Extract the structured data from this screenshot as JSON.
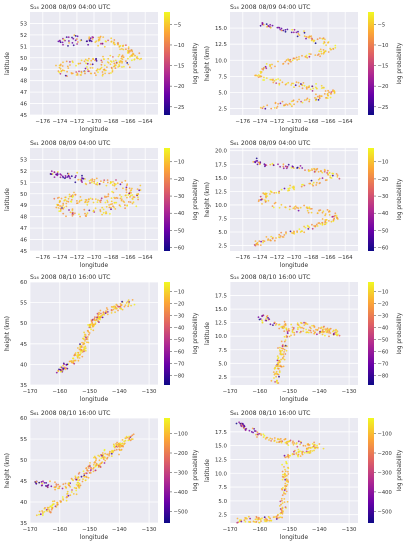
{
  "figure": {
    "background": "#ffffff",
    "axes_face": "#eaeaf2",
    "grid_color": "#ffffff"
  },
  "colormap": [
    "#0d0887",
    "#6a00a8",
    "#b12a90",
    "#e16462",
    "#fca636",
    "#f0f921"
  ],
  "chart_data": [
    {
      "type": "scatter",
      "title": "S₁₄ 2008 08/09 04:00 UTC",
      "xlabel": "longitude",
      "ylabel": "latitude",
      "colorbar_label": "log probability",
      "xlim": [
        -177.5,
        -162.5
      ],
      "ylim": [
        45,
        54
      ],
      "xticks": [
        -176,
        -174,
        -172,
        -170,
        -168,
        -166,
        -164
      ],
      "yticks": [
        45,
        46,
        47,
        48,
        49,
        50,
        51,
        52,
        53
      ],
      "clim": [
        -27,
        -2
      ],
      "cticks": [
        -5,
        -10,
        -15,
        -20,
        -25
      ],
      "path": [
        [
          -174,
          51.5
        ],
        [
          -171,
          51.6
        ],
        [
          -168,
          51.3
        ],
        [
          -166,
          50.8
        ],
        [
          -165.5,
          50.4
        ],
        [
          -167,
          49.9
        ],
        [
          -169,
          49.7
        ],
        [
          -171,
          49.6
        ],
        [
          -173,
          49.4
        ],
        [
          -174.5,
          49.0
        ],
        [
          -173.5,
          48.6
        ],
        [
          -171,
          48.7
        ],
        [
          -168,
          49.1
        ],
        [
          -166,
          49.6
        ],
        [
          -164.5,
          50.2
        ]
      ],
      "spread": [
        0.25,
        0.35
      ],
      "n_points": 260,
      "low_value_side": "start"
    },
    {
      "type": "scatter",
      "title": "S₁₄ 2008 08/09 04:00 UTC",
      "xlabel": "longitude",
      "ylabel": "height (km)",
      "colorbar_label": "log probability",
      "xlim": [
        -177.5,
        -162.5
      ],
      "ylim": [
        1.5,
        17.5
      ],
      "xticks": [
        -176,
        -174,
        -172,
        -170,
        -168,
        -166,
        -164
      ],
      "yticks": [
        2.5,
        5.0,
        7.5,
        10.0,
        12.5,
        15.0
      ],
      "clim": [
        -27,
        -2
      ],
      "cticks": [
        -5,
        -10,
        -15,
        -20,
        -25
      ],
      "path": [
        [
          -174,
          15.8
        ],
        [
          -170,
          14.4
        ],
        [
          -167,
          13.0
        ],
        [
          -165,
          12.2
        ],
        [
          -167,
          11.0
        ],
        [
          -170,
          10.2
        ],
        [
          -173,
          9.2
        ],
        [
          -174.5,
          7.8
        ],
        [
          -173,
          6.8
        ],
        [
          -170,
          6.2
        ],
        [
          -167,
          5.6
        ],
        [
          -165,
          5.0
        ],
        [
          -167,
          4.2
        ],
        [
          -170,
          3.4
        ],
        [
          -173,
          2.8
        ],
        [
          -174,
          2.6
        ]
      ],
      "spread": [
        0.25,
        0.45
      ],
      "n_points": 260,
      "low_value_side": "start"
    },
    {
      "type": "scatter",
      "title": "S₆₁ 2008 08/09 04:00 UTC",
      "xlabel": "longitude",
      "ylabel": "latitude",
      "colorbar_label": "log probability",
      "xlim": [
        -177.5,
        -162.5
      ],
      "ylim": [
        45,
        54
      ],
      "xticks": [
        -176,
        -174,
        -172,
        -170,
        -168,
        -166,
        -164
      ],
      "yticks": [
        45,
        46,
        47,
        48,
        49,
        50,
        51,
        52,
        53
      ],
      "clim": [
        -62,
        -2
      ],
      "cticks": [
        -10,
        -20,
        -30,
        -40,
        -50,
        -60
      ],
      "path": [
        [
          -175,
          51.8
        ],
        [
          -172,
          51.3
        ],
        [
          -169,
          51.0
        ],
        [
          -166,
          50.8
        ],
        [
          -165.5,
          50.2
        ],
        [
          -167.5,
          49.6
        ],
        [
          -170,
          49.4
        ],
        [
          -172.5,
          49.6
        ],
        [
          -174.5,
          49.0
        ],
        [
          -173,
          48.4
        ],
        [
          -170,
          48.4
        ],
        [
          -167,
          49.0
        ],
        [
          -165,
          49.6
        ],
        [
          -164.5,
          50.6
        ]
      ],
      "spread": [
        0.3,
        0.4
      ],
      "n_points": 280,
      "low_value_side": "start"
    },
    {
      "type": "scatter",
      "title": "S₆₁ 2008 08/09 04:00 UTC",
      "xlabel": "longitude",
      "ylabel": "height (km)",
      "colorbar_label": "log probability",
      "xlim": [
        -177.5,
        -162.5
      ],
      "ylim": [
        1.5,
        20.5
      ],
      "xticks": [
        -176,
        -174,
        -172,
        -170,
        -168,
        -166,
        -164
      ],
      "yticks": [
        2.5,
        5.0,
        7.5,
        10.0,
        12.5,
        15.0,
        17.5,
        20.0
      ],
      "clim": [
        -62,
        -2
      ],
      "cticks": [
        -10,
        -20,
        -30,
        -40,
        -50,
        -60
      ],
      "path": [
        [
          -175,
          18.0
        ],
        [
          -171,
          17.2
        ],
        [
          -167,
          16.2
        ],
        [
          -165,
          15.4
        ],
        [
          -167,
          14.2
        ],
        [
          -170,
          13.2
        ],
        [
          -173,
          12.2
        ],
        [
          -174,
          11.0
        ],
        [
          -172,
          10.0
        ],
        [
          -169,
          9.4
        ],
        [
          -166,
          8.6
        ],
        [
          -165,
          7.6
        ],
        [
          -167,
          6.4
        ],
        [
          -170,
          5.0
        ],
        [
          -173,
          3.6
        ],
        [
          -175,
          2.4
        ]
      ],
      "spread": [
        0.3,
        0.5
      ],
      "n_points": 280,
      "low_value_side": "start"
    },
    {
      "type": "scatter",
      "title": "S₁₄ 2008 08/10 16:00 UTC",
      "xlabel": "longitude",
      "ylabel": "height (km)",
      "colorbar_label": "log probability",
      "xlim": [
        -170,
        -127
      ],
      "ylim": [
        35,
        60
      ],
      "xticks": [
        -170,
        -160,
        -150,
        -140,
        -130
      ],
      "yticks": [
        35,
        40,
        45,
        50,
        55,
        60
      ],
      "clim": [
        -88,
        -2
      ],
      "cticks": [
        -10,
        -20,
        -30,
        -40,
        -50,
        -60,
        -70,
        -80
      ],
      "path": [
        [
          -160,
          38.5
        ],
        [
          -155,
          41
        ],
        [
          -152,
          44
        ],
        [
          -151,
          47
        ],
        [
          -149,
          50
        ],
        [
          -145,
          52.5
        ],
        [
          -140,
          54
        ],
        [
          -136,
          55
        ]
      ],
      "spread": [
        1.0,
        0.8
      ],
      "n_points": 240,
      "low_value_side": "start"
    },
    {
      "type": "scatter",
      "title": "S₁₄ 2008 08/10 16:00 UTC",
      "xlabel": "longitude",
      "ylabel": "latitude",
      "colorbar_label": "log probability",
      "xlim": [
        -170,
        -127
      ],
      "ylim": [
        1,
        20
      ],
      "xticks": [
        -170,
        -160,
        -150,
        -140,
        -130
      ],
      "yticks": [
        2.5,
        5.0,
        7.5,
        10.0,
        12.5,
        15.0,
        17.5
      ],
      "clim": [
        -88,
        -2
      ],
      "cticks": [
        -10,
        -20,
        -30,
        -40,
        -50,
        -60,
        -70,
        -80
      ],
      "path": [
        [
          -160,
          13.5
        ],
        [
          -155,
          12.2
        ],
        [
          -150,
          11.6
        ],
        [
          -146,
          12.2
        ],
        [
          -142,
          11.8
        ],
        [
          -138,
          11.2
        ],
        [
          -134,
          10.6
        ],
        [
          -150,
          11.0
        ],
        [
          -152,
          9
        ],
        [
          -153,
          6
        ],
        [
          -154,
          3
        ],
        [
          -155,
          1.5
        ]
      ],
      "spread": [
        1.2,
        0.6
      ],
      "n_points": 240,
      "low_value_side": "start"
    },
    {
      "type": "scatter",
      "title": "S₆₁ 2008 08/10 16:00 UTC",
      "xlabel": "longitude",
      "ylabel": "height (km)",
      "colorbar_label": "log probability",
      "xlim": [
        -170,
        -127
      ],
      "ylim": [
        35,
        60
      ],
      "xticks": [
        -170,
        -160,
        -150,
        -140,
        -130
      ],
      "yticks": [
        35,
        40,
        45,
        50,
        55,
        60
      ],
      "clim": [
        -560,
        -20
      ],
      "cticks": [
        -100,
        -200,
        -300,
        -400,
        -500
      ],
      "path": [
        [
          -168,
          45
        ],
        [
          -162,
          43.5
        ],
        [
          -158,
          44
        ],
        [
          -153,
          46
        ],
        [
          -149,
          49
        ],
        [
          -145,
          51.5
        ],
        [
          -140,
          53.5
        ],
        [
          -136,
          55.5
        ],
        [
          -150,
          47
        ],
        [
          -156,
          42
        ],
        [
          -162,
          39
        ],
        [
          -167,
          37
        ]
      ],
      "spread": [
        1.2,
        0.8
      ],
      "n_points": 300,
      "low_value_side": "start"
    },
    {
      "type": "scatter",
      "title": "S₆₁ 2008 08/10 16:00 UTC",
      "xlabel": "longitude",
      "ylabel": "latitude",
      "colorbar_label": "log probability",
      "xlim": [
        -170,
        -127
      ],
      "ylim": [
        1,
        20
      ],
      "xticks": [
        -170,
        -160,
        -150,
        -140,
        -130
      ],
      "yticks": [
        2.5,
        5.0,
        7.5,
        10.0,
        12.5,
        15.0,
        17.5
      ],
      "clim": [
        -560,
        -20
      ],
      "cticks": [
        -100,
        -200,
        -300,
        -400,
        -500
      ],
      "path": [
        [
          -167,
          19
        ],
        [
          -162,
          17.5
        ],
        [
          -157,
          16.2
        ],
        [
          -152,
          15.6
        ],
        [
          -146,
          15.3
        ],
        [
          -140,
          14.8
        ],
        [
          -151,
          13
        ],
        [
          -151.5,
          9
        ],
        [
          -152,
          5
        ],
        [
          -153,
          2
        ],
        [
          -160,
          1.5
        ],
        [
          -168,
          1.2
        ]
      ],
      "spread": [
        1.1,
        0.6
      ],
      "n_points": 300,
      "low_value_side": "start"
    }
  ]
}
